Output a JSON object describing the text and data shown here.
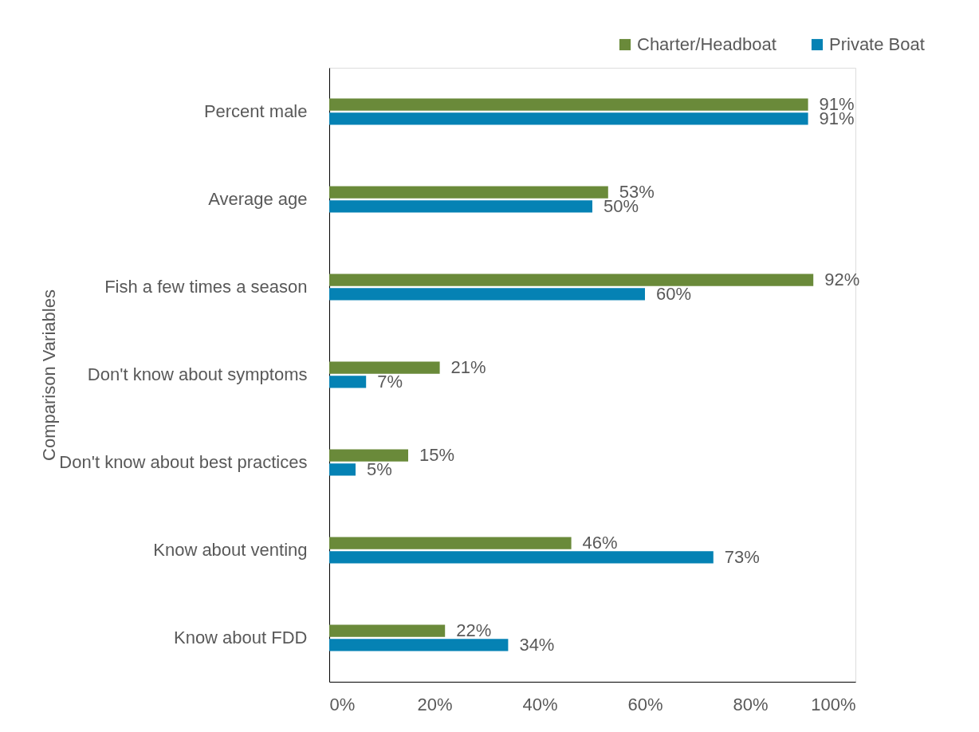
{
  "chart_data": {
    "type": "bar",
    "orientation": "horizontal",
    "ylabel": "Comparison Variables",
    "categories": [
      "Percent male",
      "Average age",
      "Fish a few times a season",
      "Don't know about symptoms",
      "Don't know about best practices",
      "Know about venting",
      "Know about FDD"
    ],
    "series": [
      {
        "name": "Charter/Headboat",
        "color": "#6a8a3a",
        "values": [
          91,
          53,
          92,
          21,
          15,
          46,
          22
        ],
        "value_labels": [
          "91%",
          "53%",
          "92%",
          "21%",
          "15%",
          "46%",
          "22%"
        ]
      },
      {
        "name": "Private Boat",
        "color": "#0582b4",
        "values": [
          91,
          50,
          60,
          7,
          5,
          73,
          34
        ],
        "value_labels": [
          "91%",
          "50%",
          "60%",
          "7%",
          "5%",
          "73%",
          "34%"
        ]
      }
    ],
    "xlim": [
      0,
      100
    ],
    "xticks": [
      {
        "value": 0,
        "label": "0%"
      },
      {
        "value": 20,
        "label": "20%"
      },
      {
        "value": 40,
        "label": "40%"
      },
      {
        "value": 60,
        "label": "60%"
      },
      {
        "value": 80,
        "label": "80%"
      },
      {
        "value": 100,
        "label": "100%"
      }
    ],
    "legend": "top right"
  }
}
